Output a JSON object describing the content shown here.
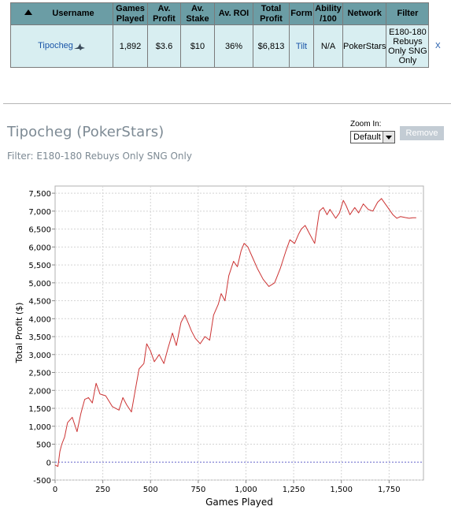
{
  "table": {
    "headers": {
      "username": "Username",
      "games_played": [
        "Games",
        "Played"
      ],
      "av_profit": [
        "Av.",
        "Profit"
      ],
      "av_stake": [
        "Av.",
        "Stake"
      ],
      "av_roi": "Av. ROI",
      "total_profit": [
        "Total",
        "Profit"
      ],
      "form": "Form",
      "ability": [
        "Ability",
        "/100"
      ],
      "network": "Network",
      "filter": "Filter"
    },
    "row": {
      "username": "Tipocheg",
      "games_played": "1,892",
      "av_profit": "$3.6",
      "av_stake": "$10",
      "av_roi": "36%",
      "total_profit": "$6,813",
      "form": "Tilt",
      "ability": "N/A",
      "network": "PokerStars",
      "filter": [
        "E180-180",
        "Rebuys",
        "Only SNG",
        "Only"
      ],
      "remove_x": "X"
    },
    "colors": {
      "header_bg": "#6b9da5",
      "row_bg": "#d8eef1",
      "link": "#1a55a8"
    },
    "icons": {
      "sort": "sort-up-arrow-icon",
      "shark": "shark-icon"
    }
  },
  "header": {
    "title": "Tipocheg (PokerStars)",
    "filter_text": "Filter: E180-180 Rebuys Only SNG Only",
    "zoom_label": "Zoom In:",
    "zoom_value": "Default",
    "remove_label": "Remove"
  },
  "chart_data": {
    "type": "line",
    "xlabel": "Games Played",
    "ylabel": "Total Profit ($)",
    "xlim": [
      0,
      1930
    ],
    "ylim": [
      -500,
      7700
    ],
    "x_ticks": [
      0,
      250,
      500,
      750,
      1000,
      1250,
      1500,
      1750
    ],
    "x_tick_labels": [
      "0",
      "250",
      "500",
      "750",
      "1,000",
      "1,250",
      "1,500",
      "1,750"
    ],
    "y_ticks": [
      -500,
      0,
      500,
      1000,
      1500,
      2000,
      2500,
      3000,
      3500,
      4000,
      4500,
      5000,
      5500,
      6000,
      6500,
      7000,
      7500
    ],
    "y_tick_labels": [
      "-500",
      "0",
      "500",
      "1,000",
      "1,500",
      "2,000",
      "2,500",
      "3,000",
      "3,500",
      "4,000",
      "4,500",
      "5,000",
      "5,500",
      "6,000",
      "6,500",
      "7,000",
      "7,500"
    ],
    "grid": true,
    "line_color": "#cc3333",
    "zero_line_color": "#6666cc",
    "series": [
      {
        "x": [
          0,
          15,
          25,
          35,
          50,
          65,
          90,
          115,
          135,
          155,
          175,
          195,
          215,
          235,
          265,
          300,
          335,
          355,
          375,
          400,
          420,
          440,
          465,
          480,
          500,
          520,
          545,
          570,
          590,
          615,
          635,
          660,
          680,
          700,
          715,
          735,
          760,
          785,
          810,
          830,
          855,
          870,
          890,
          910,
          935,
          955,
          975,
          990,
          1010,
          1035,
          1060,
          1090,
          1120,
          1150,
          1180,
          1210,
          1230,
          1255,
          1275,
          1290,
          1310,
          1330,
          1360,
          1385,
          1405,
          1425,
          1440,
          1470,
          1490,
          1510,
          1525,
          1545,
          1570,
          1590,
          1615,
          1640,
          1665,
          1690,
          1710,
          1730,
          1750,
          1770,
          1790,
          1810,
          1835,
          1855,
          1875,
          1892
        ],
        "y": [
          -80,
          -120,
          300,
          500,
          700,
          1100,
          1250,
          850,
          1350,
          1750,
          1800,
          1650,
          2200,
          1900,
          1850,
          1550,
          1450,
          1800,
          1600,
          1400,
          2000,
          2600,
          2750,
          3300,
          3100,
          2800,
          3000,
          2750,
          3150,
          3600,
          3250,
          3900,
          4100,
          3850,
          3650,
          3450,
          3300,
          3500,
          3400,
          4100,
          4400,
          4700,
          4500,
          5200,
          5600,
          5450,
          5900,
          6100,
          6000,
          5700,
          5400,
          5100,
          4900,
          5000,
          5400,
          5900,
          6200,
          6100,
          6350,
          6500,
          6600,
          6400,
          6100,
          7000,
          7100,
          6900,
          7050,
          6800,
          6950,
          7300,
          7150,
          6900,
          7100,
          6950,
          7200,
          7050,
          7000,
          7250,
          7350,
          7200,
          7050,
          6900,
          6800,
          6850,
          6820,
          6800,
          6813,
          6813
        ]
      }
    ]
  }
}
